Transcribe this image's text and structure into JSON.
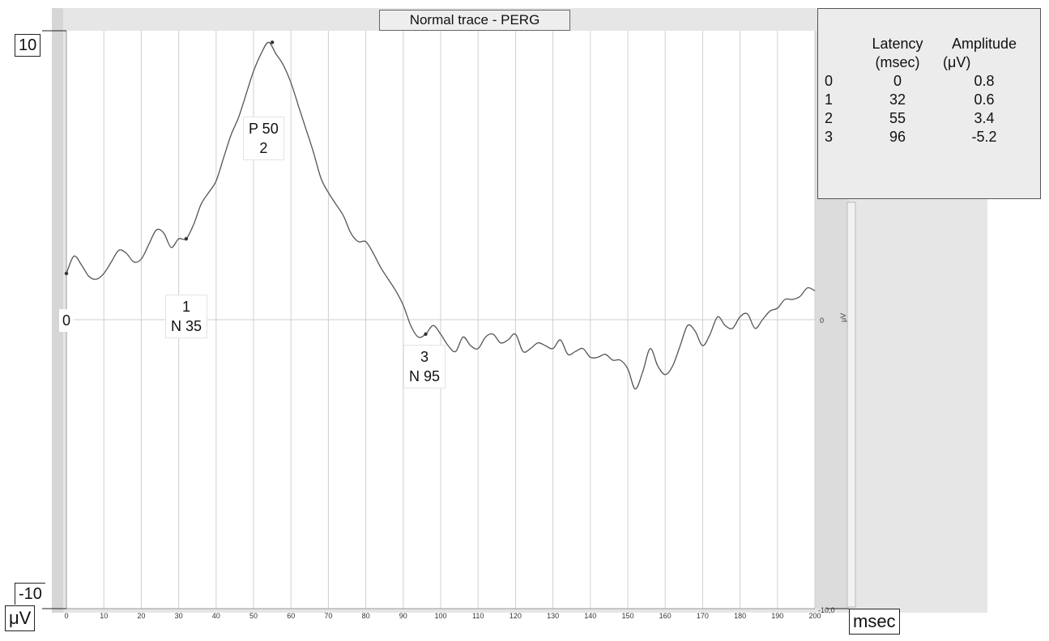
{
  "chart_data": {
    "type": "line",
    "title": "Normal trace - PERG",
    "xlabel": "msec",
    "ylabel": "μV",
    "xlim": [
      0,
      200
    ],
    "ylim": [
      -10,
      10
    ],
    "x_ticks": [
      0,
      10,
      20,
      30,
      40,
      50,
      60,
      70,
      80,
      90,
      100,
      110,
      120,
      130,
      140,
      150,
      160,
      170,
      180,
      190,
      200
    ],
    "y_axis_labels": {
      "top": "10",
      "bottom": "-10",
      "zero": "0"
    },
    "right_axis_labels": {
      "zero": "0",
      "unit": "μV",
      "bottom": "-10,0"
    },
    "grid": true,
    "series": [
      {
        "x": [
          0,
          2,
          4,
          6,
          8,
          10,
          12,
          14,
          16,
          18,
          20,
          22,
          24,
          26,
          28,
          30,
          32,
          34,
          36,
          38,
          40,
          42,
          44,
          46,
          48,
          50,
          52,
          54,
          56,
          58,
          60,
          62,
          64,
          66,
          68,
          70,
          72,
          74,
          76,
          78,
          80,
          82,
          84,
          86,
          88,
          90,
          92,
          94,
          96,
          98,
          100,
          102,
          104,
          106,
          108,
          110,
          112,
          114,
          116,
          118,
          120,
          122,
          124,
          126,
          128,
          130,
          132,
          134,
          136,
          138,
          140,
          142,
          144,
          146,
          148,
          150,
          152,
          154,
          156,
          158,
          160,
          162,
          164,
          166,
          168,
          170,
          172,
          174,
          176,
          178,
          180,
          182,
          184,
          186,
          188,
          190,
          192,
          194,
          196,
          198,
          200
        ],
        "y": [
          1.6,
          2.2,
          1.9,
          1.5,
          1.4,
          1.6,
          2.0,
          2.4,
          2.3,
          2.0,
          2.1,
          2.6,
          3.1,
          3.0,
          2.5,
          2.8,
          2.8,
          3.3,
          4.0,
          4.4,
          4.8,
          5.6,
          6.4,
          7.0,
          7.8,
          8.6,
          9.2,
          9.6,
          9.2,
          8.8,
          8.2,
          7.4,
          6.6,
          5.8,
          4.9,
          4.4,
          4.0,
          3.6,
          3.0,
          2.7,
          2.7,
          2.3,
          1.8,
          1.4,
          1.0,
          0.5,
          -0.2,
          -0.6,
          -0.5,
          -0.2,
          -0.5,
          -0.9,
          -1.1,
          -0.6,
          -0.9,
          -1.0,
          -0.6,
          -0.5,
          -0.8,
          -0.7,
          -0.5,
          -1.1,
          -1.0,
          -0.8,
          -0.9,
          -1.0,
          -0.7,
          -1.2,
          -1.1,
          -1.0,
          -1.3,
          -1.3,
          -1.2,
          -1.4,
          -1.4,
          -1.7,
          -2.4,
          -1.8,
          -1.0,
          -1.6,
          -1.9,
          -1.6,
          -0.9,
          -0.2,
          -0.4,
          -0.9,
          -0.5,
          0.1,
          -0.2,
          -0.3,
          0.1,
          0.2,
          -0.3,
          0.0,
          0.3,
          0.4,
          0.7,
          0.7,
          0.8,
          1.1,
          1.0
        ]
      }
    ],
    "markers": [
      {
        "id": "0",
        "x": 0,
        "y": 1.6,
        "label_lines": [
          "0"
        ]
      },
      {
        "id": "1",
        "x": 32,
        "y": 2.8,
        "label_lines": [
          "1",
          "N 35"
        ]
      },
      {
        "id": "2",
        "x": 55,
        "y": 9.6,
        "label_lines": [
          "P 50",
          "2"
        ]
      },
      {
        "id": "3",
        "x": 96,
        "y": -0.5,
        "label_lines": [
          "3",
          "N 95"
        ]
      }
    ],
    "table": {
      "headers": [
        "",
        "Latency\n(msec)",
        "Amplitude\n(μV)"
      ],
      "header_line1": [
        "",
        "Latency",
        "Amplitude"
      ],
      "header_line2": [
        "",
        "(msec)",
        "(μV)"
      ],
      "rows": [
        [
          "0",
          "0",
          "0.8"
        ],
        [
          "1",
          "32",
          "0.6"
        ],
        [
          "2",
          "55",
          "3.4"
        ],
        [
          "3",
          "96",
          "-5.2"
        ]
      ]
    }
  },
  "colors": {
    "trace": "#555555",
    "grid": "#d0d0d0",
    "frame": "#c8c8c8",
    "background": "#ffffff"
  }
}
